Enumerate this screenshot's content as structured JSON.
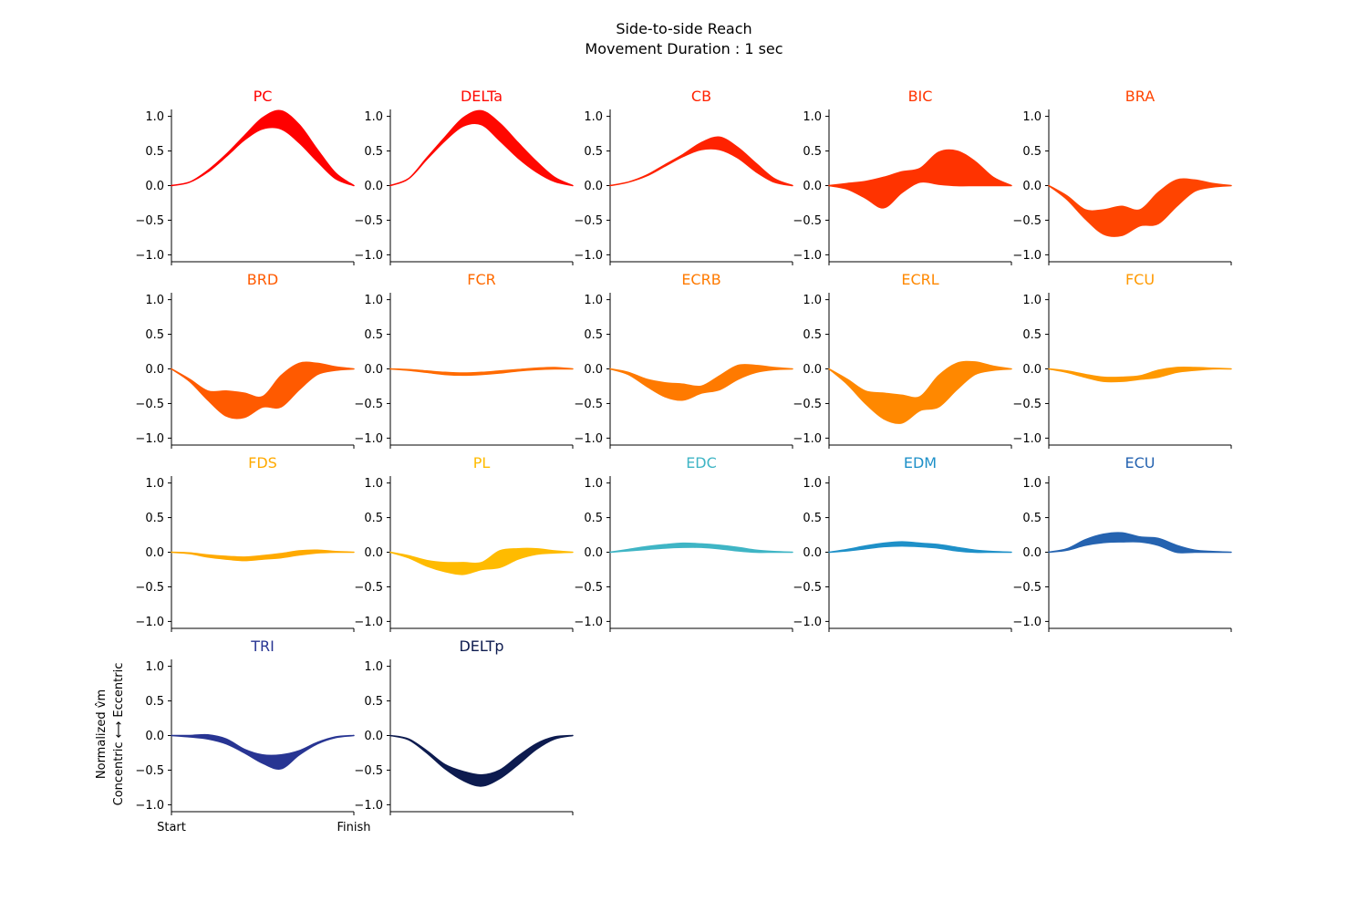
{
  "figure": {
    "title": "Side-to-side Reach",
    "subtitle": "Movement Duration : 1 sec",
    "ylabel_line1": "Normalized v̂m",
    "ylabel_line2": "Concentric ⟷ Eccentric",
    "x_start_label": "Start",
    "x_end_label": "Finish"
  },
  "chart_data": {
    "type": "area",
    "xlabel": "",
    "ylim": [
      -1.1,
      1.1
    ],
    "yticks": [
      "1.0",
      "0.5",
      "0.0",
      "−0.5",
      "−1.0"
    ],
    "ytick_values": [
      1.0,
      0.5,
      0.0,
      -0.5,
      -1.0
    ],
    "x": [
      0,
      0.1,
      0.2,
      0.3,
      0.4,
      0.5,
      0.6,
      0.7,
      0.8,
      0.9,
      1.0
    ],
    "series": [
      {
        "name": "PC",
        "color": "#ff0000",
        "upper": [
          0,
          0.05,
          0.22,
          0.45,
          0.72,
          0.98,
          1.08,
          0.88,
          0.52,
          0.18,
          0
        ],
        "lower": [
          0,
          0.05,
          0.2,
          0.42,
          0.66,
          0.82,
          0.82,
          0.62,
          0.35,
          0.1,
          0
        ]
      },
      {
        "name": "DELTa",
        "color": "#ff0800",
        "upper": [
          0,
          0.1,
          0.4,
          0.7,
          0.98,
          1.08,
          0.9,
          0.62,
          0.35,
          0.12,
          0
        ],
        "lower": [
          0,
          0.1,
          0.38,
          0.65,
          0.86,
          0.88,
          0.65,
          0.4,
          0.2,
          0.06,
          0
        ]
      },
      {
        "name": "CB",
        "color": "#ff2200",
        "upper": [
          0,
          0.05,
          0.15,
          0.3,
          0.45,
          0.62,
          0.7,
          0.55,
          0.32,
          0.1,
          0
        ],
        "lower": [
          0,
          0.05,
          0.14,
          0.28,
          0.42,
          0.52,
          0.52,
          0.4,
          0.2,
          0.05,
          0
        ]
      },
      {
        "name": "BIC",
        "color": "#ff3300",
        "upper": [
          0,
          0.03,
          0.06,
          0.12,
          0.2,
          0.25,
          0.48,
          0.5,
          0.35,
          0.12,
          0
        ],
        "lower": [
          0,
          -0.05,
          -0.18,
          -0.32,
          -0.1,
          0.05,
          0.02,
          0.0,
          0.0,
          0.0,
          0
        ]
      },
      {
        "name": "BRA",
        "color": "#ff4400",
        "upper": [
          0,
          -0.15,
          -0.35,
          -0.35,
          -0.3,
          -0.35,
          -0.1,
          0.08,
          0.08,
          0.03,
          0
        ],
        "lower": [
          0,
          -0.2,
          -0.48,
          -0.7,
          -0.72,
          -0.58,
          -0.55,
          -0.3,
          -0.08,
          -0.02,
          0
        ]
      },
      {
        "name": "BRD",
        "color": "#ff5a00",
        "upper": [
          0,
          -0.15,
          -0.32,
          -0.32,
          -0.35,
          -0.4,
          -0.1,
          0.08,
          0.08,
          0.03,
          0
        ],
        "lower": [
          0,
          -0.18,
          -0.45,
          -0.68,
          -0.7,
          -0.55,
          -0.55,
          -0.3,
          -0.08,
          -0.02,
          0
        ]
      },
      {
        "name": "FCR",
        "color": "#ff6a00",
        "upper": [
          0,
          -0.01,
          -0.03,
          -0.05,
          -0.06,
          -0.05,
          -0.03,
          -0.01,
          0.01,
          0.02,
          0
        ],
        "lower": [
          0,
          -0.02,
          -0.05,
          -0.08,
          -0.09,
          -0.08,
          -0.06,
          -0.03,
          -0.01,
          0.0,
          0
        ]
      },
      {
        "name": "ECRB",
        "color": "#ff7a00",
        "upper": [
          0,
          -0.05,
          -0.15,
          -0.2,
          -0.22,
          -0.25,
          -0.1,
          0.05,
          0.05,
          0.02,
          0
        ],
        "lower": [
          0,
          -0.08,
          -0.25,
          -0.4,
          -0.45,
          -0.35,
          -0.3,
          -0.15,
          -0.05,
          -0.01,
          0
        ]
      },
      {
        "name": "ECRL",
        "color": "#ff8800",
        "upper": [
          0,
          -0.15,
          -0.32,
          -0.35,
          -0.38,
          -0.4,
          -0.1,
          0.08,
          0.1,
          0.04,
          0
        ],
        "lower": [
          0,
          -0.22,
          -0.5,
          -0.72,
          -0.78,
          -0.6,
          -0.55,
          -0.3,
          -0.08,
          -0.02,
          0
        ]
      },
      {
        "name": "FCU",
        "color": "#ff9900",
        "upper": [
          0,
          -0.03,
          -0.08,
          -0.12,
          -0.12,
          -0.1,
          -0.02,
          0.02,
          0.02,
          0.01,
          0
        ],
        "lower": [
          0,
          -0.05,
          -0.12,
          -0.18,
          -0.18,
          -0.15,
          -0.12,
          -0.05,
          -0.02,
          0.0,
          0
        ]
      },
      {
        "name": "FDS",
        "color": "#ffaa00",
        "upper": [
          0,
          -0.01,
          -0.04,
          -0.06,
          -0.07,
          -0.05,
          -0.02,
          0.02,
          0.03,
          0.01,
          0
        ],
        "lower": [
          0,
          -0.02,
          -0.07,
          -0.1,
          -0.12,
          -0.1,
          -0.08,
          -0.04,
          -0.01,
          0.0,
          0
        ]
      },
      {
        "name": "PL",
        "color": "#ffbb00",
        "upper": [
          0,
          -0.05,
          -0.12,
          -0.15,
          -0.15,
          -0.15,
          0.02,
          0.05,
          0.05,
          0.02,
          0
        ],
        "lower": [
          0,
          -0.08,
          -0.2,
          -0.28,
          -0.32,
          -0.25,
          -0.22,
          -0.1,
          -0.03,
          -0.01,
          0
        ]
      },
      {
        "name": "EDC",
        "color": "#3fb5c5",
        "upper": [
          0,
          0.04,
          0.08,
          0.11,
          0.13,
          0.12,
          0.1,
          0.07,
          0.03,
          0.01,
          0
        ],
        "lower": [
          0,
          0.02,
          0.04,
          0.06,
          0.07,
          0.07,
          0.05,
          0.02,
          0.0,
          0.0,
          0
        ]
      },
      {
        "name": "EDM",
        "color": "#1e90c8",
        "upper": [
          0,
          0.04,
          0.09,
          0.13,
          0.15,
          0.13,
          0.11,
          0.07,
          0.03,
          0.01,
          0
        ],
        "lower": [
          0,
          0.02,
          0.05,
          0.08,
          0.09,
          0.08,
          0.06,
          0.02,
          0.0,
          0.0,
          0
        ]
      },
      {
        "name": "ECU",
        "color": "#2563b0",
        "upper": [
          0,
          0.05,
          0.18,
          0.26,
          0.28,
          0.22,
          0.2,
          0.1,
          0.03,
          0.01,
          0
        ],
        "lower": [
          0,
          0.03,
          0.1,
          0.14,
          0.15,
          0.15,
          0.1,
          0.0,
          0.0,
          0.0,
          0
        ]
      },
      {
        "name": "TRI",
        "color": "#283593",
        "upper": [
          0,
          0.0,
          0.01,
          -0.05,
          -0.2,
          -0.28,
          -0.28,
          -0.22,
          -0.1,
          -0.02,
          0
        ],
        "lower": [
          0,
          -0.02,
          -0.05,
          -0.12,
          -0.25,
          -0.4,
          -0.48,
          -0.28,
          -0.12,
          -0.03,
          0
        ]
      },
      {
        "name": "DELTp",
        "color": "#0d1b4f",
        "upper": [
          0,
          -0.05,
          -0.22,
          -0.42,
          -0.52,
          -0.57,
          -0.5,
          -0.3,
          -0.12,
          -0.02,
          0
        ],
        "lower": [
          0,
          -0.06,
          -0.25,
          -0.48,
          -0.65,
          -0.73,
          -0.62,
          -0.42,
          -0.2,
          -0.05,
          0
        ]
      }
    ]
  }
}
